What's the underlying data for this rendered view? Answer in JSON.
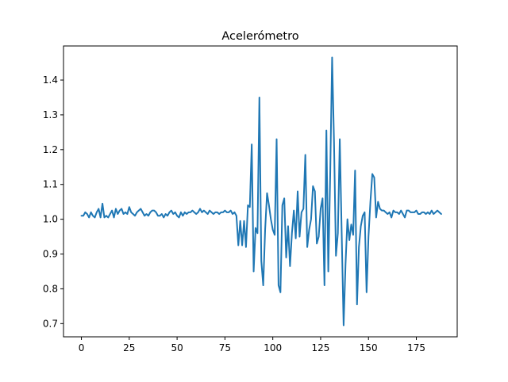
{
  "chart_data": {
    "type": "line",
    "title": "Acelerómetro",
    "xlabel": "",
    "ylabel": "",
    "xlim": [
      -9.35,
      196.35
    ],
    "ylim": [
      0.662,
      1.498
    ],
    "xticks": [
      0,
      25,
      50,
      75,
      100,
      125,
      150,
      175
    ],
    "yticks": [
      0.7,
      0.8,
      0.9,
      1.0,
      1.1,
      1.2,
      1.3,
      1.4
    ],
    "ytick_labels": [
      "0.7",
      "0.8",
      "0.9",
      "1.0",
      "1.1",
      "1.2",
      "1.3",
      "1.4"
    ],
    "grid": false,
    "line_color": "#1f77b4",
    "series": [
      {
        "values": [
          1.01,
          1.01,
          1.02,
          1.015,
          1.005,
          1.02,
          1.01,
          1.005,
          1.02,
          1.03,
          1.005,
          1.045,
          1.005,
          1.01,
          1.005,
          1.015,
          1.025,
          1.005,
          1.03,
          1.015,
          1.025,
          1.03,
          1.015,
          1.02,
          1.015,
          1.035,
          1.02,
          1.015,
          1.01,
          1.02,
          1.025,
          1.03,
          1.02,
          1.01,
          1.015,
          1.01,
          1.02,
          1.025,
          1.025,
          1.02,
          1.01,
          1.01,
          1.015,
          1.005,
          1.015,
          1.01,
          1.02,
          1.025,
          1.015,
          1.02,
          1.01,
          1.005,
          1.02,
          1.01,
          1.02,
          1.015,
          1.02,
          1.02,
          1.025,
          1.02,
          1.015,
          1.02,
          1.03,
          1.02,
          1.025,
          1.02,
          1.015,
          1.025,
          1.02,
          1.015,
          1.02,
          1.02,
          1.015,
          1.02,
          1.02,
          1.025,
          1.02,
          1.02,
          1.025,
          1.015,
          1.02,
          1.01,
          0.925,
          0.995,
          0.925,
          0.995,
          0.92,
          1.04,
          1.035,
          1.215,
          0.85,
          0.975,
          0.96,
          1.35,
          0.88,
          0.81,
          0.97,
          1.075,
          1.04,
          1.0,
          0.97,
          0.955,
          1.23,
          0.81,
          0.79,
          1.04,
          1.06,
          0.89,
          0.98,
          0.865,
          0.96,
          1.025,
          0.945,
          1.08,
          0.95,
          1.02,
          1.03,
          1.185,
          0.92,
          0.97,
          1.0,
          1.095,
          1.08,
          0.93,
          0.95,
          1.03,
          1.06,
          0.81,
          1.255,
          0.85,
          1.13,
          1.465,
          1.22,
          0.895,
          0.96,
          1.23,
          0.96,
          0.695,
          0.87,
          1.0,
          0.94,
          0.985,
          0.955,
          1.14,
          0.755,
          0.92,
          0.98,
          1.01,
          1.02,
          0.79,
          0.95,
          1.05,
          1.13,
          1.12,
          1.005,
          1.05,
          1.03,
          1.025,
          1.025,
          1.02,
          1.015,
          1.02,
          1.005,
          1.025,
          1.02,
          1.02,
          1.015,
          1.025,
          1.015,
          1.005,
          1.025,
          1.025,
          1.02,
          1.02,
          1.02,
          1.025,
          1.015,
          1.015,
          1.02,
          1.02,
          1.015,
          1.02,
          1.015,
          1.025,
          1.015,
          1.02,
          1.025,
          1.02,
          1.015
        ]
      }
    ]
  }
}
